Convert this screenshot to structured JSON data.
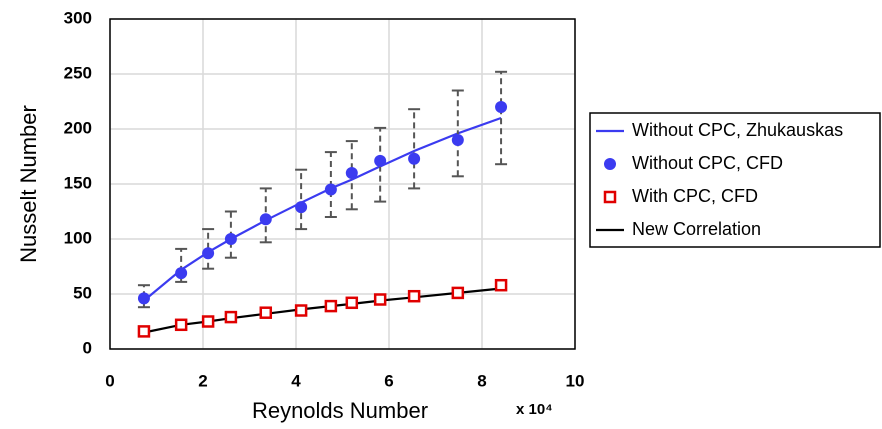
{
  "chart_data": {
    "type": "line",
    "x_label": "Reynolds Number",
    "y_label": "Nusselt Number",
    "x_multiplier": "x 10⁴",
    "x": [
      0.73,
      1.53,
      2.11,
      2.6,
      3.35,
      4.11,
      4.75,
      5.2,
      5.81,
      6.54,
      7.48,
      8.41
    ],
    "series": [
      {
        "name": "Without CPC, Zhukauskas",
        "color": "#3b3bf0",
        "mode": "line",
        "values": [
          44,
          72,
          88,
          100,
          117,
          133,
          146,
          154,
          166,
          180,
          196,
          210
        ]
      },
      {
        "name": "Without CPC, CFD",
        "color": "#3b3bf0",
        "mode": "markers",
        "marker": "circle",
        "values": [
          46,
          69,
          87,
          100,
          118,
          129,
          145,
          160,
          171,
          173,
          190,
          220
        ],
        "error_minus": [
          8,
          8,
          14,
          17,
          21,
          20,
          25,
          33,
          37,
          27,
          33,
          52
        ],
        "error_plus": [
          12,
          22,
          22,
          25,
          28,
          34,
          34,
          29,
          30,
          45,
          45,
          32
        ],
        "error_color": "#555555"
      },
      {
        "name": "With CPC, CFD",
        "color": "#e00000",
        "mode": "markers",
        "marker": "square",
        "values": [
          16,
          22,
          25,
          29,
          33,
          35,
          39,
          42,
          45,
          48,
          51,
          58
        ]
      },
      {
        "name": "New Correlation",
        "color": "#000000",
        "mode": "line",
        "values": [
          15,
          22,
          25,
          28,
          32,
          36,
          39,
          41,
          44,
          47,
          51,
          55
        ]
      }
    ],
    "xlim": [
      0,
      10
    ],
    "xticks": [
      0,
      2,
      4,
      6,
      8,
      10
    ],
    "ylim": [
      0,
      300
    ],
    "yticks": [
      0,
      50,
      100,
      150,
      200,
      250,
      300
    ],
    "grid": true,
    "legend": "right"
  }
}
